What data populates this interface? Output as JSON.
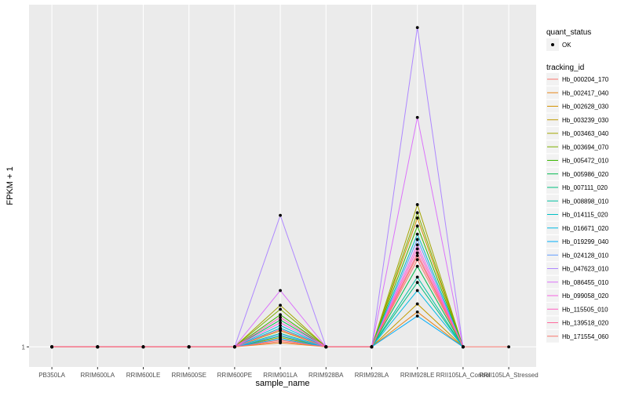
{
  "chart_data": {
    "type": "line",
    "title": "",
    "xlabel": "sample_name",
    "ylabel": "FPKM + 1",
    "y_tick_labels": [
      "1"
    ],
    "y_ticks": [
      1
    ],
    "ylim": [
      0.85,
      3.55
    ],
    "categories": [
      "PB350LA",
      "RRIM600LA",
      "RRIM600LE",
      "RRIM600SE",
      "RRIM600PE",
      "RRIM901LA",
      "RRIM928BA",
      "RRIM928LA",
      "RRIM928LE",
      "RRII105LA_Control",
      "RRII105LA_Stressed"
    ],
    "legend": {
      "quant_status_title": "quant_status",
      "quant_status_items": [
        "OK"
      ],
      "tracking_title": "tracking_id"
    },
    "series": [
      {
        "name": "Hb_000204_170",
        "color": "#F8766D",
        "values": [
          1,
          1,
          1,
          1,
          1,
          1.05,
          1,
          1,
          1.65,
          1,
          null
        ]
      },
      {
        "name": "Hb_002417_040",
        "color": "#E7861B",
        "values": [
          1,
          1,
          1,
          1,
          1,
          1.03,
          1,
          1,
          1.26,
          1,
          null
        ]
      },
      {
        "name": "Hb_002628_030",
        "color": "#D39200",
        "values": [
          1,
          1,
          1,
          1,
          1,
          1.12,
          1,
          1,
          1.96,
          1,
          null
        ]
      },
      {
        "name": "Hb_003239_030",
        "color": "#C09B00",
        "values": [
          1,
          1,
          1,
          1,
          1,
          1.07,
          1,
          1,
          1.32,
          1,
          null
        ]
      },
      {
        "name": "Hb_003463_040",
        "color": "#A3A500",
        "values": [
          1,
          1,
          1,
          1,
          1,
          1.31,
          1,
          1,
          2.06,
          1,
          null
        ]
      },
      {
        "name": "Hb_003694_070",
        "color": "#7CAE00",
        "values": [
          1,
          1,
          1,
          1,
          1,
          1.28,
          1,
          1,
          2.0,
          1,
          null
        ]
      },
      {
        "name": "Hb_005472_010",
        "color": "#39B600",
        "values": [
          1,
          1,
          1,
          1,
          1,
          1.24,
          1,
          1,
          1.9,
          1,
          null
        ]
      },
      {
        "name": "Hb_005986_020",
        "color": "#00BB4E",
        "values": [
          1,
          1,
          1,
          1,
          1,
          1.2,
          1,
          1,
          1.6,
          1,
          null
        ]
      },
      {
        "name": "Hb_007111_020",
        "color": "#00BF7D",
        "values": [
          1,
          1,
          1,
          1,
          1,
          1.08,
          1,
          1,
          1.48,
          1,
          null
        ]
      },
      {
        "name": "Hb_008898_010",
        "color": "#00C1A3",
        "values": [
          1,
          1,
          1,
          1,
          1,
          1.1,
          1,
          1,
          1.52,
          1,
          null
        ]
      },
      {
        "name": "Hb_014115_020",
        "color": "#00BFC4",
        "values": [
          1,
          1,
          1,
          1,
          1,
          1.14,
          1,
          1,
          1.84,
          1,
          null
        ]
      },
      {
        "name": "Hb_016671_020",
        "color": "#00B9E3",
        "values": [
          1,
          1,
          1,
          1,
          1,
          1.16,
          1,
          1,
          1.42,
          1,
          null
        ]
      },
      {
        "name": "Hb_019299_040",
        "color": "#00ADFA",
        "values": [
          1,
          1,
          1,
          1,
          1,
          1.06,
          1,
          1,
          1.23,
          1,
          null
        ]
      },
      {
        "name": "Hb_024128_010",
        "color": "#619CFF",
        "values": [
          1,
          1,
          1,
          1,
          1,
          1.09,
          1,
          1,
          1.8,
          1,
          null
        ]
      },
      {
        "name": "Hb_047623_010",
        "color": "#AE87FF",
        "values": [
          1,
          1,
          1,
          1,
          1,
          1.98,
          1,
          1,
          3.38,
          1,
          null
        ]
      },
      {
        "name": "Hb_086455_010",
        "color": "#DB72FB",
        "values": [
          1,
          1,
          1,
          1,
          1,
          1.42,
          1,
          1,
          2.71,
          1,
          null
        ]
      },
      {
        "name": "Hb_099058_020",
        "color": "#F564E3",
        "values": [
          1,
          1,
          1,
          1,
          1,
          1.18,
          1,
          1,
          1.76,
          1,
          null
        ]
      },
      {
        "name": "Hb_115505_010",
        "color": "#FF61C3",
        "values": [
          1,
          1,
          1,
          1,
          1,
          1.22,
          1,
          1,
          1.73,
          1,
          null
        ]
      },
      {
        "name": "Hb_139518_020",
        "color": "#FF699C",
        "values": [
          1,
          1,
          1,
          1,
          1,
          1.13,
          1,
          1,
          1.7,
          1,
          null
        ]
      },
      {
        "name": "Hb_171554_060",
        "color": "#F8766D",
        "values": [
          1,
          1,
          1,
          1,
          1,
          1.04,
          1,
          1,
          1.68,
          1,
          1
        ]
      }
    ]
  }
}
